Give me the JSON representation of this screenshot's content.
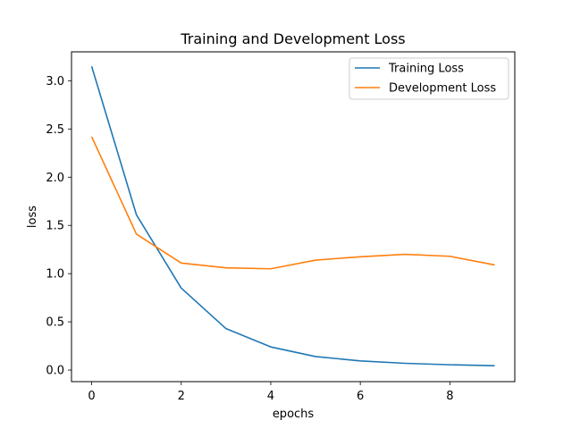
{
  "chart_data": {
    "type": "line",
    "title": "Training and Development Loss",
    "xlabel": "epochs",
    "ylabel": "loss",
    "xlim": [
      -0.45,
      9.45
    ],
    "ylim": [
      -0.12,
      3.3
    ],
    "x_ticks": [
      0,
      2,
      4,
      6,
      8
    ],
    "x_tick_labels": [
      "0",
      "2",
      "4",
      "6",
      "8"
    ],
    "y_ticks": [
      0.0,
      0.5,
      1.0,
      1.5,
      2.0,
      2.5,
      3.0
    ],
    "y_tick_labels": [
      "0.0",
      "0.5",
      "1.0",
      "1.5",
      "2.0",
      "2.5",
      "3.0"
    ],
    "grid": false,
    "legend_position": "top-right",
    "x": [
      0,
      1,
      2,
      3,
      4,
      5,
      6,
      7,
      8,
      9
    ],
    "series": [
      {
        "name": "Training Loss",
        "color": "#1f77b4",
        "values": [
          3.15,
          1.61,
          0.85,
          0.43,
          0.24,
          0.14,
          0.095,
          0.07,
          0.055,
          0.045
        ]
      },
      {
        "name": "Development Loss",
        "color": "#ff7f0e",
        "values": [
          2.42,
          1.41,
          1.11,
          1.06,
          1.05,
          1.14,
          1.175,
          1.2,
          1.18,
          1.09
        ]
      }
    ]
  }
}
